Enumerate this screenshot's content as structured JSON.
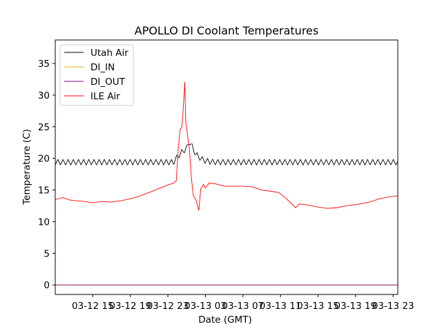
{
  "chart_data": {
    "type": "line",
    "title": "APOLLO DI Coolant Temperatures",
    "xlabel": "Date (GMT)",
    "ylabel": "Temperature (C)",
    "x_unit": "hours since 03-12 11:00 GMT",
    "xlim": [
      0,
      36.5
    ],
    "ylim": [
      -1.5,
      38.7
    ],
    "yticks": [
      0,
      5,
      10,
      15,
      20,
      25,
      30,
      35
    ],
    "xticks": [
      {
        "label": "03-12 15",
        "x": 4
      },
      {
        "label": "03-12 19",
        "x": 8
      },
      {
        "label": "03-12 23",
        "x": 12
      },
      {
        "label": "03-13 03",
        "x": 16
      },
      {
        "label": "03-13 07",
        "x": 20
      },
      {
        "label": "03-13 11",
        "x": 24
      },
      {
        "label": "03-13 15",
        "x": 28
      },
      {
        "label": "03-13 19",
        "x": 32
      },
      {
        "label": "03-13 23",
        "x": 36
      }
    ],
    "legend_position": "top-left",
    "series": [
      {
        "name": "Utah Air",
        "color": "#000000",
        "oscillation": {
          "amplitude": 0.45,
          "period_hours": 0.55
        },
        "points": [
          [
            0,
            19.4
          ],
          [
            12.6,
            19.4
          ],
          [
            13.0,
            20.2
          ],
          [
            13.5,
            21.0
          ],
          [
            14.0,
            21.6
          ],
          [
            14.3,
            22.6
          ],
          [
            14.6,
            21.8
          ],
          [
            15.0,
            20.6
          ],
          [
            15.5,
            20.0
          ],
          [
            16.0,
            19.6
          ],
          [
            17.0,
            19.4
          ],
          [
            36.5,
            19.4
          ]
        ]
      },
      {
        "name": "DI_IN",
        "color": "#e0b400",
        "points": [
          [
            0,
            0
          ],
          [
            36.5,
            0
          ]
        ]
      },
      {
        "name": "DI_OUT",
        "color": "#800080",
        "points": [
          [
            0,
            0
          ],
          [
            36.5,
            0
          ]
        ]
      },
      {
        "name": "ILE Air",
        "color": "#ff0000",
        "points": [
          [
            0,
            13.5
          ],
          [
            0.8,
            13.8
          ],
          [
            1.6,
            13.4
          ],
          [
            3.0,
            13.2
          ],
          [
            4.0,
            13.0
          ],
          [
            5.0,
            13.2
          ],
          [
            6.0,
            13.1
          ],
          [
            7.0,
            13.3
          ],
          [
            8.5,
            13.8
          ],
          [
            10.0,
            14.6
          ],
          [
            11.0,
            15.2
          ],
          [
            12.0,
            15.8
          ],
          [
            12.6,
            16.1
          ],
          [
            12.9,
            16.5
          ],
          [
            13.1,
            21.5
          ],
          [
            13.3,
            24.5
          ],
          [
            13.5,
            25.0
          ],
          [
            13.6,
            27.0
          ],
          [
            13.8,
            32.0
          ],
          [
            13.9,
            26.0
          ],
          [
            14.1,
            23.5
          ],
          [
            14.3,
            21.5
          ],
          [
            14.5,
            17.0
          ],
          [
            14.7,
            14.2
          ],
          [
            15.0,
            13.4
          ],
          [
            15.3,
            11.8
          ],
          [
            15.5,
            15.2
          ],
          [
            15.8,
            15.9
          ],
          [
            16.0,
            15.3
          ],
          [
            16.4,
            16.1
          ],
          [
            17.0,
            16.0
          ],
          [
            18.0,
            15.6
          ],
          [
            20.0,
            15.6
          ],
          [
            21.0,
            15.5
          ],
          [
            22.0,
            15.0
          ],
          [
            23.0,
            14.8
          ],
          [
            23.8,
            14.6
          ],
          [
            24.5,
            13.8
          ],
          [
            25.2,
            12.8
          ],
          [
            25.6,
            12.2
          ],
          [
            26.0,
            12.8
          ],
          [
            27.0,
            12.6
          ],
          [
            28.0,
            12.3
          ],
          [
            29.0,
            12.1
          ],
          [
            30.0,
            12.2
          ],
          [
            31.0,
            12.5
          ],
          [
            32.5,
            12.8
          ],
          [
            33.5,
            13.1
          ],
          [
            34.5,
            13.6
          ],
          [
            35.5,
            13.9
          ],
          [
            36.5,
            14.1
          ]
        ]
      }
    ]
  }
}
